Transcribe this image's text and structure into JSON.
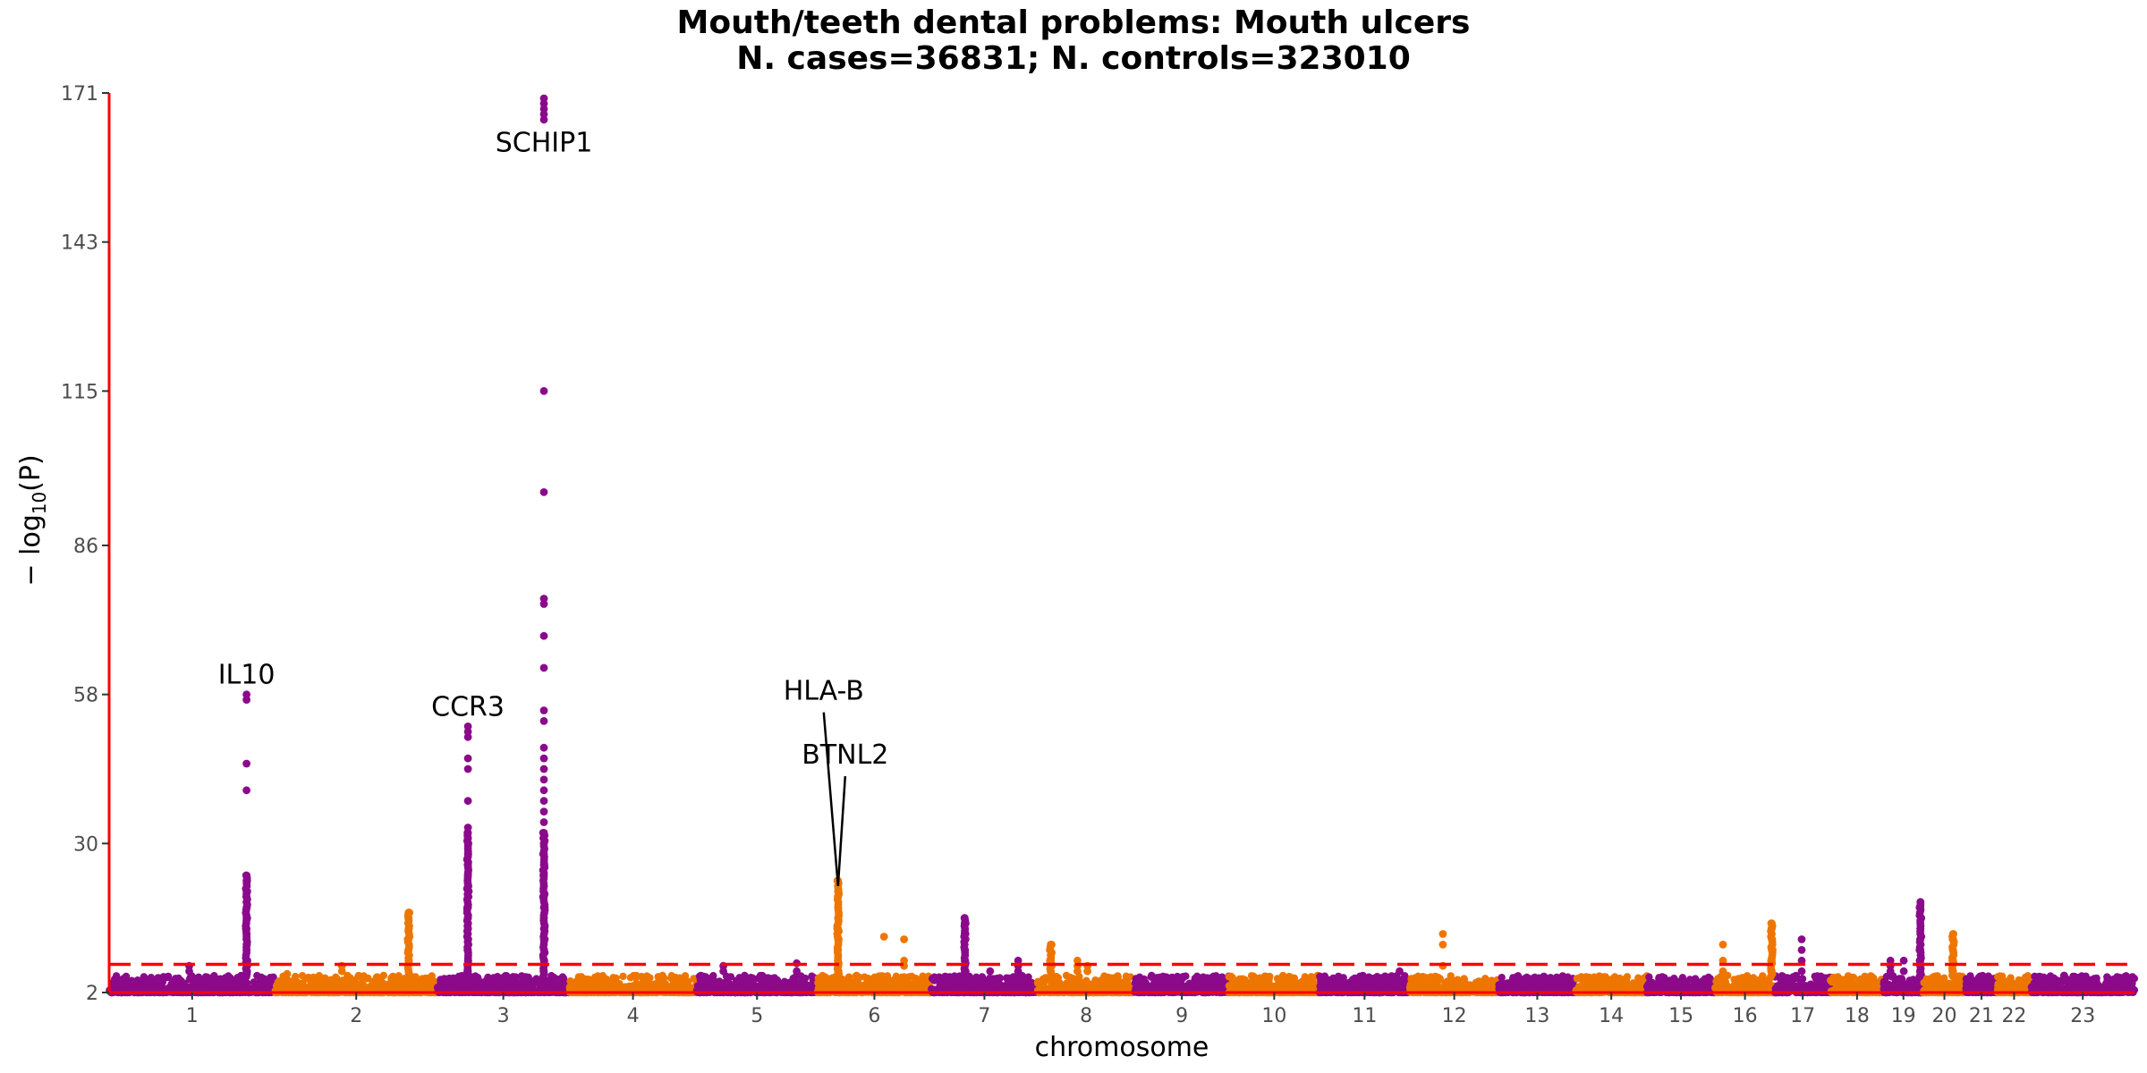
{
  "chart_data": {
    "type": "scatter",
    "subtype": "manhattan",
    "title": "Mouth/teeth dental problems: Mouth ulcers",
    "subtitle": "N. cases=36831; N. controls=323010",
    "xlabel": "chromosome",
    "ylabel_parts": {
      "prefix": "− log",
      "sub": "10",
      "suffix": "(P)"
    },
    "ylim": [
      2,
      171
    ],
    "yticks": [
      2,
      30,
      58,
      86,
      115,
      143,
      171
    ],
    "significance_line": 7.3,
    "colors": {
      "odd": "#8B0A8B",
      "even": "#EE7600",
      "threshold": "#FF0000",
      "axis": "#FF0000"
    },
    "chromosomes": [
      {
        "label": "1",
        "size": 249
      },
      {
        "label": "2",
        "size": 243
      },
      {
        "label": "3",
        "size": 198
      },
      {
        "label": "4",
        "size": 191
      },
      {
        "label": "5",
        "size": 181
      },
      {
        "label": "6",
        "size": 171
      },
      {
        "label": "7",
        "size": 159
      },
      {
        "label": "8",
        "size": 146
      },
      {
        "label": "9",
        "size": 141
      },
      {
        "label": "10",
        "size": 136
      },
      {
        "label": "11",
        "size": 135
      },
      {
        "label": "12",
        "size": 134
      },
      {
        "label": "13",
        "size": 115
      },
      {
        "label": "14",
        "size": 107
      },
      {
        "label": "15",
        "size": 102
      },
      {
        "label": "16",
        "size": 90
      },
      {
        "label": "17",
        "size": 83
      },
      {
        "label": "18",
        "size": 80
      },
      {
        "label": "19",
        "size": 59
      },
      {
        "label": "20",
        "size": 64
      },
      {
        "label": "21",
        "size": 47
      },
      {
        "label": "22",
        "size": 51
      },
      {
        "label": "23",
        "size": 155
      }
    ],
    "peaks": [
      {
        "chr": "1",
        "pos": 120,
        "points": [
          6,
          7
        ]
      },
      {
        "chr": "1",
        "pos": 206,
        "points": [
          6,
          8,
          10,
          11,
          12,
          13,
          14,
          16,
          18,
          20,
          21,
          23,
          24,
          40,
          45,
          57,
          58
        ]
      },
      {
        "chr": "2",
        "pos": 18,
        "points": [
          5.5
        ]
      },
      {
        "chr": "2",
        "pos": 100,
        "points": [
          6,
          7
        ]
      },
      {
        "chr": "2",
        "pos": 200,
        "points": [
          8,
          10,
          12,
          14,
          16,
          17
        ]
      },
      {
        "chr": "3",
        "pos": 46,
        "points": [
          6,
          8,
          10,
          12,
          14,
          16,
          18,
          20,
          22,
          24,
          26,
          28,
          30,
          31,
          32,
          33,
          38,
          44,
          46,
          50,
          51,
          52
        ]
      },
      {
        "chr": "3",
        "pos": 160,
        "points": [
          6,
          8,
          10,
          12,
          14,
          16,
          18,
          20,
          22,
          24,
          26,
          28,
          30,
          32,
          34,
          36,
          38,
          40,
          42,
          44,
          46,
          48,
          53,
          55,
          63,
          69,
          75,
          76,
          96,
          115,
          166,
          167,
          168,
          169,
          170
        ]
      },
      {
        "chr": "5",
        "pos": 40,
        "points": [
          6,
          7
        ]
      },
      {
        "chr": "5",
        "pos": 150,
        "points": [
          6,
          7.5
        ]
      },
      {
        "chr": "6",
        "pos": 31,
        "points": [
          6,
          8,
          10,
          12,
          14,
          16,
          18,
          20,
          21,
          22,
          23
        ]
      },
      {
        "chr": "6",
        "pos": 100,
        "points": [
          12.5
        ]
      },
      {
        "chr": "6",
        "pos": 130,
        "points": [
          7,
          8,
          12
        ]
      },
      {
        "chr": "7",
        "pos": 50,
        "points": [
          6,
          8,
          10,
          13,
          15,
          16
        ]
      },
      {
        "chr": "7",
        "pos": 130,
        "points": [
          6,
          7,
          8
        ]
      },
      {
        "chr": "7",
        "pos": 88,
        "points": [
          6
        ]
      },
      {
        "chr": "8",
        "pos": 20,
        "points": [
          6,
          7,
          8,
          9,
          11
        ]
      },
      {
        "chr": "8",
        "pos": 60,
        "points": [
          6,
          7,
          8
        ]
      },
      {
        "chr": "8",
        "pos": 75,
        "points": [
          6,
          7
        ]
      },
      {
        "chr": "11",
        "pos": 120,
        "points": [
          6
        ]
      },
      {
        "chr": "12",
        "pos": 50,
        "points": [
          7,
          11,
          13
        ]
      },
      {
        "chr": "16",
        "pos": 12,
        "points": [
          6,
          8,
          11
        ]
      },
      {
        "chr": "16",
        "pos": 85,
        "points": [
          6,
          8,
          10,
          12,
          14,
          15
        ]
      },
      {
        "chr": "17",
        "pos": 40,
        "points": [
          6,
          8,
          10,
          12
        ]
      },
      {
        "chr": "19",
        "pos": 10,
        "points": [
          6,
          7,
          8
        ]
      },
      {
        "chr": "19",
        "pos": 30,
        "points": [
          6,
          8
        ]
      },
      {
        "chr": "19",
        "pos": 55,
        "points": [
          6,
          8,
          10,
          12,
          14,
          18,
          19
        ]
      },
      {
        "chr": "20",
        "pos": 45,
        "points": [
          6,
          8,
          10,
          12,
          13
        ]
      }
    ],
    "annotations": [
      {
        "label": "SCHIP1",
        "chr": "3",
        "pos": 160,
        "y": 160,
        "dx": 0,
        "line_to": null
      },
      {
        "label": "IL10",
        "chr": "1",
        "pos": 206,
        "y": 60,
        "dx": 0,
        "line_to": null
      },
      {
        "label": "CCR3",
        "chr": "3",
        "pos": 46,
        "y": 54,
        "dx": 0,
        "line_to": null
      },
      {
        "label": "HLA-B",
        "chr": "6",
        "pos": 31,
        "y": 57,
        "dx": -16,
        "line_to": 22
      },
      {
        "label": "BTNL2",
        "chr": "6",
        "pos": 31,
        "y": 45,
        "dx": 8,
        "line_to": 22
      }
    ]
  }
}
